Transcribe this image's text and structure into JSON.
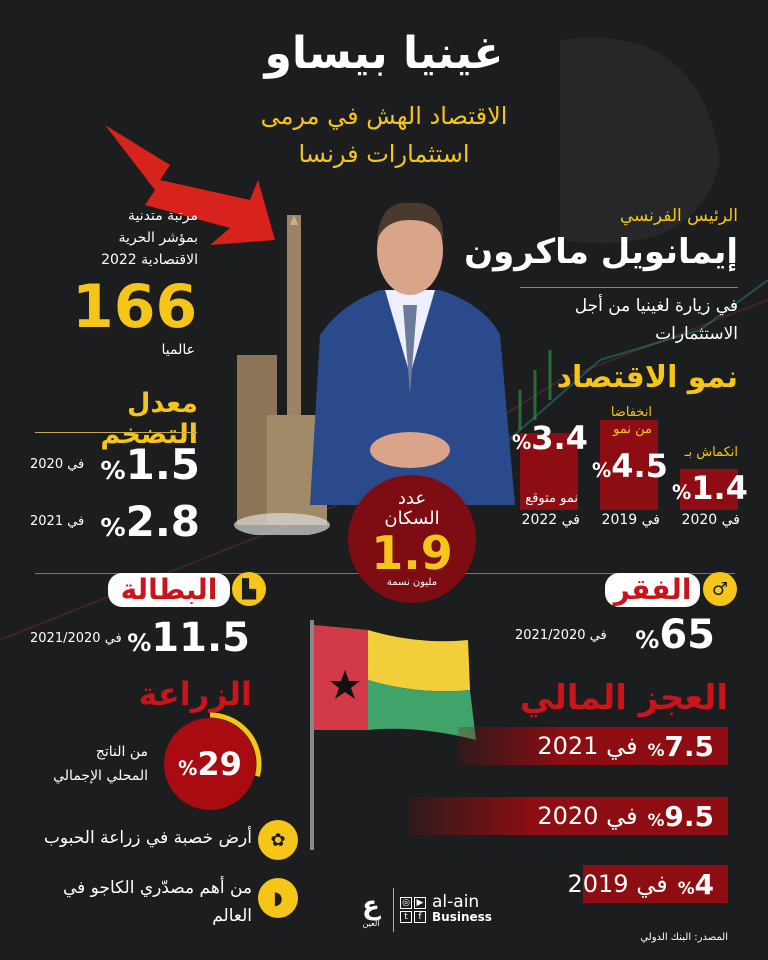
{
  "header": {
    "title": "غينيا بيساو",
    "subtitle_line1": "الاقتصاد الهش في مرمى",
    "subtitle_line2": "استثمارات فرنسا"
  },
  "freedom": {
    "line1": "مرتبة متدنية",
    "line2": "بمؤشر الحرية",
    "line3": "الاقتصادية 2022",
    "rank": "166",
    "rank_suffix": "عالميا"
  },
  "president": {
    "role": "الرئيس الفرنسي",
    "name": "إيمانويل ماكرون",
    "desc_line1": "في زيارة لغينيا من أجل",
    "desc_line2": "الاستثمارات"
  },
  "growth": {
    "title": "نمو الاقتصاد",
    "items": [
      {
        "label": "انكماش بـ",
        "value": "1.4",
        "unit": "%",
        "year": "في 2020",
        "fill_pct": 25
      },
      {
        "label": "انخفاضا من نمو",
        "value": "4.5",
        "unit": "%",
        "year": "في 2019",
        "fill_pct": 100
      },
      {
        "label": "نمو متوقع",
        "value": "3.4",
        "unit": "%",
        "year": "في 2022",
        "fill_pct": 80
      }
    ]
  },
  "inflation": {
    "title": "معدل التضخم",
    "items": [
      {
        "value": "1.5",
        "unit": "%",
        "year": "في 2020"
      },
      {
        "value": "2.8",
        "unit": "%",
        "year": "في 2021"
      }
    ]
  },
  "population": {
    "label_line1": "عدد",
    "label_line2": "السكان",
    "value": "1.9",
    "unit": "مليون نسمة"
  },
  "unemployment": {
    "title": "البطالة",
    "value": "11.5",
    "unit": "%",
    "year": "في 2021/2020"
  },
  "poverty": {
    "title": "الفقر",
    "value": "65",
    "unit": "%",
    "year": "في 2021/2020"
  },
  "deficit": {
    "title": "العجز المالي",
    "items": [
      {
        "value": "7.5",
        "unit": "%",
        "year": "في 2021"
      },
      {
        "value": "9.5",
        "unit": "%",
        "year": "في 2020"
      },
      {
        "value": "4",
        "unit": "%",
        "year": "في 2019"
      }
    ]
  },
  "agriculture": {
    "title": "الزراعة",
    "value": "29",
    "unit": "%",
    "share_pct": 29,
    "desc_line1": "من الناتج",
    "desc_line2": "المحلي الإجمالي",
    "fact1": "أرض خصبة في زراعة الحبوب",
    "fact2_line1": "من أهم مصدّري الكاجو في",
    "fact2_line2": "العالم"
  },
  "logo": {
    "brand_ar": "العين",
    "brand_en": "al-ain",
    "sub": "Business"
  },
  "source": "المصدر: البنك الدولي",
  "colors": {
    "accent_yellow": "#f5c518",
    "accent_red": "#c8141a",
    "background": "#1c1d1f"
  }
}
